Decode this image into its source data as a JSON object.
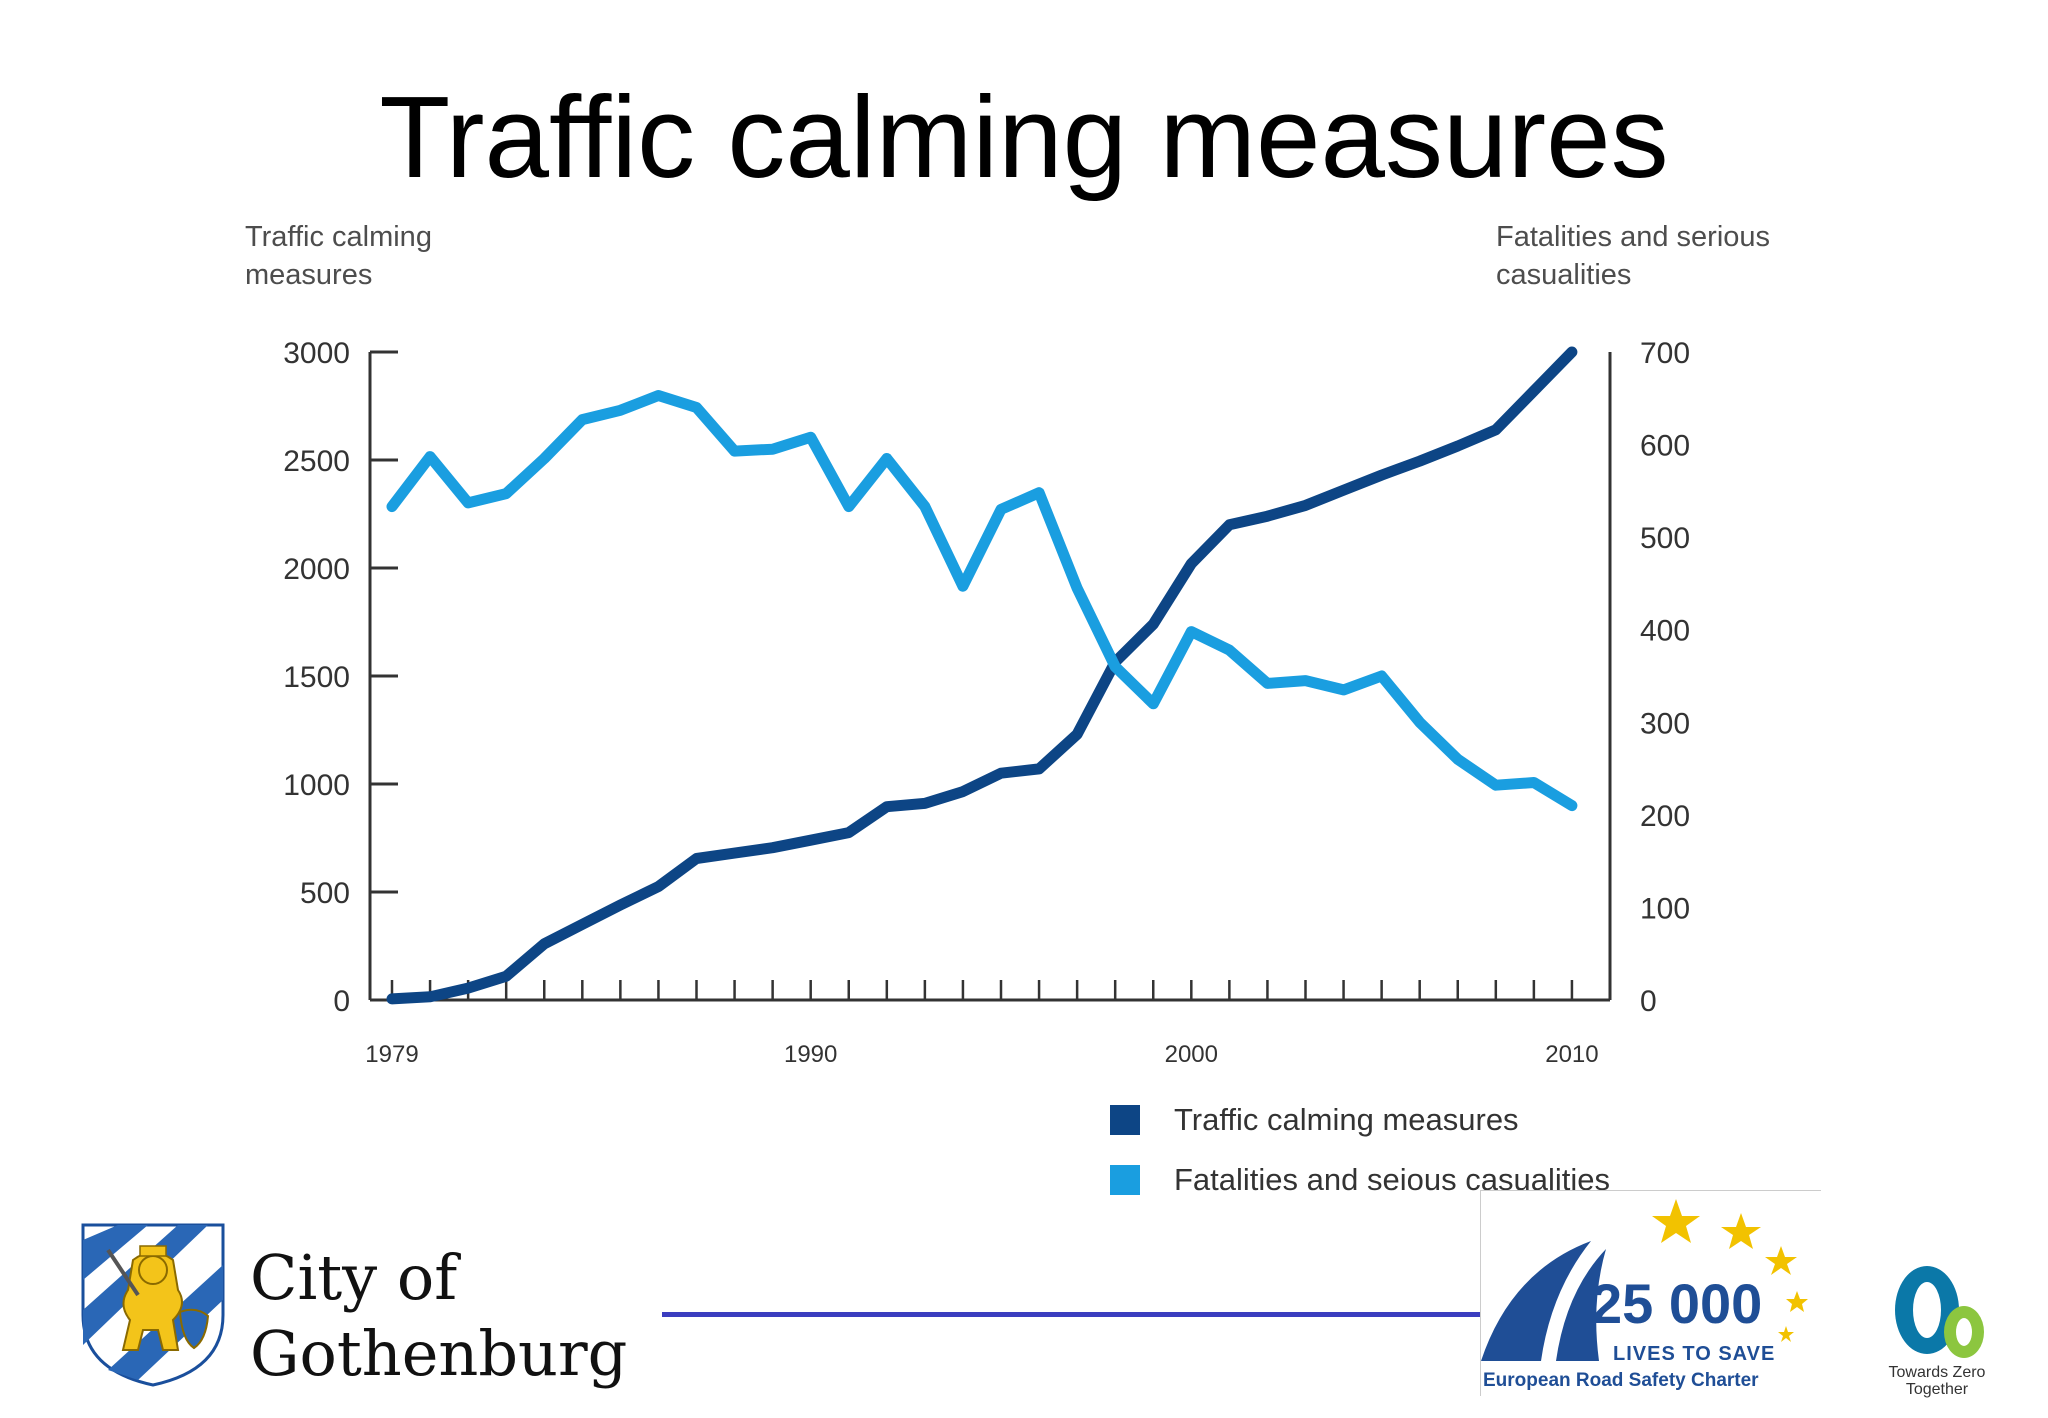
{
  "slide": {
    "title": "Traffic calming measures"
  },
  "chart_data": {
    "type": "line",
    "left_axis_title": "Traffic calming measures",
    "right_axis_title": "Fatalities and serious casualities",
    "x_tick_labels": [
      "1979",
      "1990",
      "2000",
      "2010"
    ],
    "x_range": [
      1979,
      2011
    ],
    "y_left": {
      "range": [
        0,
        3000
      ],
      "ticks": [
        "0",
        "500",
        "1000",
        "1500",
        "2000",
        "2500",
        "3000"
      ]
    },
    "y_right": {
      "range": [
        0,
        700
      ],
      "ticks": [
        "0",
        "100",
        "200",
        "300",
        "400",
        "500",
        "600",
        "700"
      ]
    },
    "series": [
      {
        "name": "Traffic calming measures",
        "axis": "left",
        "color": "#0d4585",
        "x": [
          1979,
          1980,
          1981,
          1982,
          1983,
          1984,
          1985,
          1986,
          1987,
          1988,
          1989,
          1990,
          1991,
          1992,
          1993,
          1994,
          1995,
          1996,
          1997,
          1998,
          1999,
          2000,
          2001,
          2002,
          2003,
          2004,
          2005,
          2006,
          2007,
          2008,
          2009,
          2010
        ],
        "values": [
          5,
          15,
          55,
          110,
          260,
          350,
          440,
          525,
          655,
          680,
          705,
          740,
          775,
          895,
          910,
          965,
          1050,
          1070,
          1230,
          1565,
          1740,
          2020,
          2200,
          2240,
          2290,
          2360,
          2430,
          2495,
          2565,
          2640,
          2820,
          3000
        ]
      },
      {
        "name": "Fatalities and seious casualities",
        "axis": "right",
        "color": "#1a9ee0",
        "x": [
          1979,
          1980,
          1981,
          1982,
          1983,
          1984,
          1985,
          1986,
          1987,
          1988,
          1989,
          1990,
          1991,
          1992,
          1993,
          1994,
          1995,
          1996,
          1997,
          1998,
          1999,
          2000,
          2001,
          2002,
          2003,
          2004,
          2005,
          2006,
          2007,
          2008,
          2009,
          2010
        ],
        "values": [
          533,
          587,
          537,
          547,
          585,
          627,
          637,
          653,
          640,
          593,
          595,
          608,
          533,
          585,
          533,
          447,
          530,
          548,
          445,
          360,
          320,
          398,
          378,
          342,
          345,
          335,
          350,
          300,
          260,
          232,
          235,
          210
        ]
      }
    ]
  },
  "legend": {
    "items": [
      {
        "label": "Traffic calming measures",
        "color": "#0d4585"
      },
      {
        "label": "Fatalities and seious casualities",
        "color": "#1a9ee0"
      }
    ]
  },
  "footer": {
    "city_line1": "City of",
    "city_line2": "Gothenburg",
    "badge_number": "25 000",
    "badge_subtitle": "LIVES TO SAVE",
    "badge_charter": "European Road Safety Charter",
    "tz_caption": "Towards Zero Together"
  }
}
